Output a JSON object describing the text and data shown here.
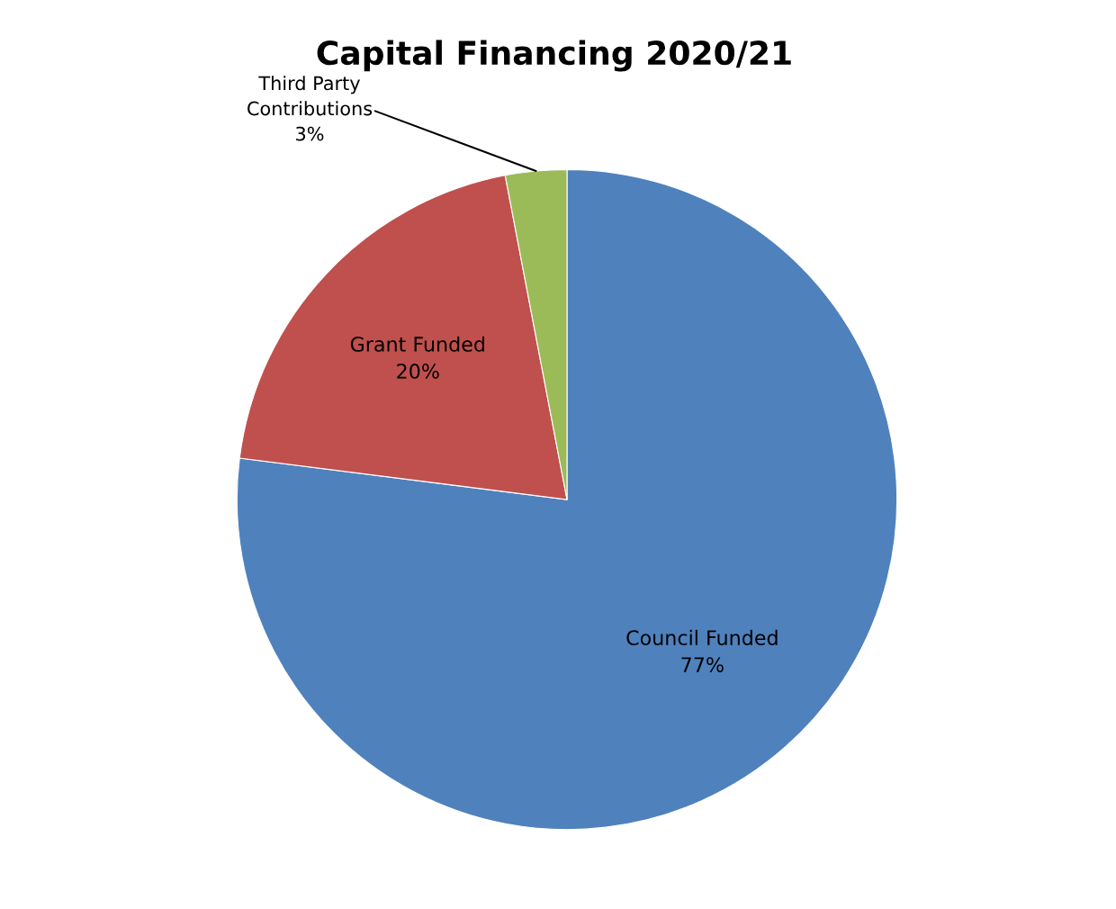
{
  "chart_data": {
    "type": "pie",
    "title": "Capital Financing 2020/21",
    "categories": [
      "Council Funded",
      "Grant Funded",
      "Third Party Contributions"
    ],
    "values": [
      77,
      20,
      3
    ],
    "value_labels": [
      "77%",
      "20%",
      "3%"
    ],
    "colors": [
      "#4f81bd",
      "#c0504d",
      "#9bbb59"
    ],
    "legend": false
  }
}
